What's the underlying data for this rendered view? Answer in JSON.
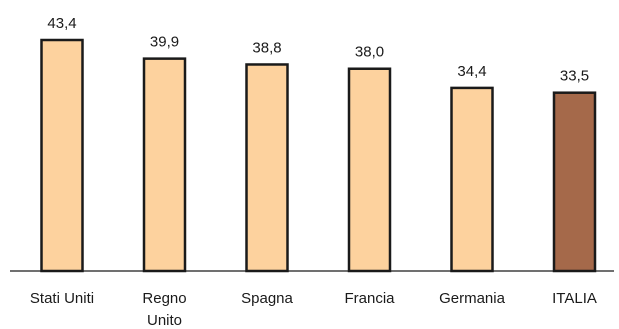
{
  "chart_data": {
    "type": "bar",
    "title": "",
    "xlabel": "",
    "ylabel": "",
    "categories": [
      [
        "Stati Uniti"
      ],
      [
        "Regno",
        "Unito"
      ],
      [
        "Spagna"
      ],
      [
        "Francia"
      ],
      [
        "Germania"
      ],
      [
        "ITALIA"
      ]
    ],
    "values": [
      43.4,
      39.9,
      38.8,
      38.0,
      34.4,
      33.5
    ],
    "value_labels": [
      "43,4",
      "39,9",
      "38,8",
      "38,0",
      "34,4",
      "33,5"
    ],
    "ylim": [
      0,
      43.4
    ],
    "grid": false,
    "colors": {
      "default_bar": "#fdd29e",
      "highlight_bar": "#a5694a",
      "highlight_category": "ITALIA",
      "outline": "#1a1a1a"
    }
  }
}
